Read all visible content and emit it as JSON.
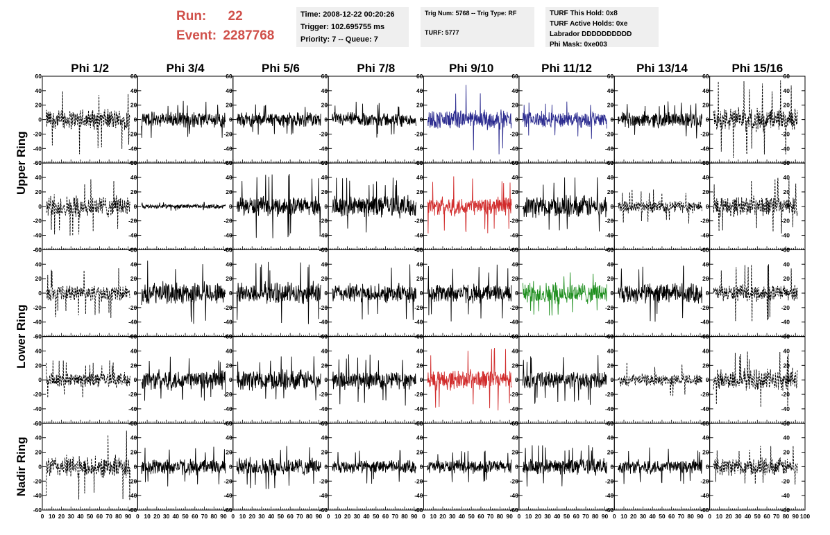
{
  "header": {
    "run_label": "Run:",
    "run_value": "22",
    "event_label": "Event:",
    "event_value": "2287768"
  },
  "info": {
    "box1": [
      "Time: 2008-12-22 00:20:26",
      "Trigger: 102.695755 ms",
      "Priority: 7 -- Queue: 7"
    ],
    "box2": [
      "Trig Num: 5768 -- Trig Type: RF",
      "",
      "TURF: 5777"
    ],
    "box3": [
      "TURF This Hold: 0x8",
      "TURF Active Holds: 0xe",
      "Labrador DDDDDDDDDD",
      "Phi Mask: 0xe003"
    ]
  },
  "colors": {
    "default": "#000000",
    "blue": "#2b2b8f",
    "red": "#d12b2b",
    "green": "#1f8f1f",
    "header_red": "#d0504a",
    "info_bg": "#efefef"
  },
  "chart_data": {
    "type": "line",
    "columns": [
      "Phi 1/2",
      "Phi 3/4",
      "Phi 5/6",
      "Phi 7/8",
      "Phi 9/10",
      "Phi 11/12",
      "Phi 13/14",
      "Phi 15/16"
    ],
    "rows": [
      "Upper Ring",
      "Lower Ring",
      "Nadir Ring"
    ],
    "ylim": [
      -60,
      60
    ],
    "yticks": [
      -60,
      -40,
      -20,
      0,
      20,
      40,
      60
    ],
    "xlim": [
      0,
      100
    ],
    "xtick_labels": [
      "0",
      "10",
      "20",
      "30",
      "40",
      "50",
      "60",
      "70",
      "80",
      "90",
      "100"
    ],
    "panels": [
      [
        {
          "style": "dashed",
          "color": "default",
          "amp": 14,
          "spike": 48
        },
        {
          "style": "solid",
          "color": "default",
          "amp": 11,
          "spike": 26
        },
        {
          "style": "solid",
          "color": "default",
          "amp": 10,
          "spike": 24
        },
        {
          "style": "solid",
          "color": "default",
          "amp": 10,
          "spike": 25
        },
        {
          "style": "solid",
          "color": "blue",
          "amp": 13,
          "spike": 48
        },
        {
          "style": "solid",
          "color": "blue",
          "amp": 11,
          "spike": 27
        },
        {
          "style": "solid",
          "color": "default",
          "amp": 11,
          "spike": 26
        },
        {
          "style": "dashed",
          "color": "default",
          "amp": 16,
          "spike": 55
        }
      ],
      [
        {
          "style": "dashed",
          "color": "default",
          "amp": 15,
          "spike": 42
        },
        {
          "style": "solid",
          "color": "default",
          "amp": 3,
          "spike": 6
        },
        {
          "style": "solid",
          "color": "default",
          "amp": 13,
          "spike": 45
        },
        {
          "style": "solid",
          "color": "default",
          "amp": 15,
          "spike": 40
        },
        {
          "style": "solid",
          "color": "red",
          "amp": 13,
          "spike": 44
        },
        {
          "style": "solid",
          "color": "default",
          "amp": 15,
          "spike": 42
        },
        {
          "style": "dashed",
          "color": "default",
          "amp": 9,
          "spike": 24
        },
        {
          "style": "dashed",
          "color": "default",
          "amp": 14,
          "spike": 40
        }
      ],
      [
        {
          "style": "dashed",
          "color": "default",
          "amp": 11,
          "spike": 35
        },
        {
          "style": "solid",
          "color": "default",
          "amp": 15,
          "spike": 45
        },
        {
          "style": "solid",
          "color": "default",
          "amp": 15,
          "spike": 44
        },
        {
          "style": "solid",
          "color": "default",
          "amp": 13,
          "spike": 40
        },
        {
          "style": "solid",
          "color": "default",
          "amp": 13,
          "spike": 40
        },
        {
          "style": "solid",
          "color": "green",
          "amp": 15,
          "spike": 32
        },
        {
          "style": "solid",
          "color": "default",
          "amp": 14,
          "spike": 40
        },
        {
          "style": "dashed",
          "color": "default",
          "amp": 11,
          "spike": 40
        }
      ],
      [
        {
          "style": "dashed",
          "color": "default",
          "amp": 10,
          "spike": 27
        },
        {
          "style": "solid",
          "color": "default",
          "amp": 14,
          "spike": 34
        },
        {
          "style": "solid",
          "color": "default",
          "amp": 14,
          "spike": 34
        },
        {
          "style": "solid",
          "color": "default",
          "amp": 13,
          "spike": 36
        },
        {
          "style": "solid",
          "color": "red",
          "amp": 14,
          "spike": 45
        },
        {
          "style": "solid",
          "color": "default",
          "amp": 12,
          "spike": 35
        },
        {
          "style": "dashed",
          "color": "default",
          "amp": 8,
          "spike": 24
        },
        {
          "style": "dashed",
          "color": "default",
          "amp": 15,
          "spike": 40
        }
      ],
      [
        {
          "style": "dashed",
          "color": "default",
          "amp": 15,
          "spike": 50
        },
        {
          "style": "solid",
          "color": "default",
          "amp": 11,
          "spike": 28
        },
        {
          "style": "solid",
          "color": "default",
          "amp": 12,
          "spike": 32
        },
        {
          "style": "solid",
          "color": "default",
          "amp": 9,
          "spike": 24
        },
        {
          "style": "solid",
          "color": "default",
          "amp": 9,
          "spike": 22
        },
        {
          "style": "solid",
          "color": "default",
          "amp": 11,
          "spike": 30
        },
        {
          "style": "solid",
          "color": "default",
          "amp": 10,
          "spike": 28
        },
        {
          "style": "dashed",
          "color": "default",
          "amp": 12,
          "spike": 30
        }
      ]
    ]
  }
}
